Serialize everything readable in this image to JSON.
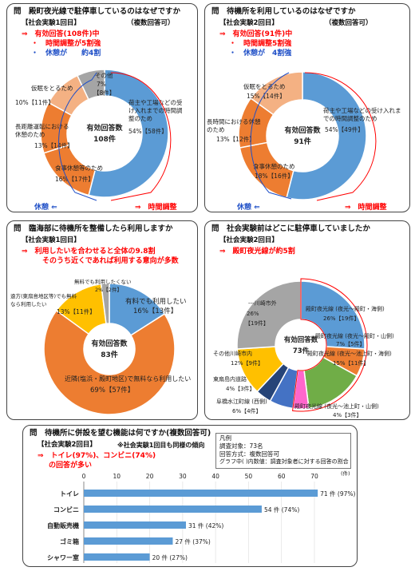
{
  "panel1": {
    "question": "問　殿町夜光線で駐停車しているのはなぜですか",
    "sub": "【社会実験1回目】",
    "sub_note": "（複数回答可）",
    "note1": "⇒　有効回答(108件)中",
    "note2": "・　時間調整が5割強",
    "note3": "・　休憩が　　約4割",
    "center_label": "有効回答数",
    "center_value": "108件",
    "label_left": "休憩 ⇐",
    "label_right": "⇒　時間調整"
  },
  "panel2": {
    "question": "問　待機所を利用しているのはなぜですか",
    "sub": "【社会実験2回目】",
    "sub_note": "（複数回答可）",
    "note1": "⇒　有効回答(91件)中",
    "note2": "・　時間調整5割強",
    "note3": "・　休憩が　4割強",
    "center_label": "有効回答数",
    "center_value": "91件",
    "label_left": "休憩 ⇐",
    "label_right": "⇒　時間調整"
  },
  "panel3": {
    "question": "問　臨海部に待機所を整備したら利用しますか",
    "sub": "【社会実験1回目】",
    "note1": "⇒　利用したいを合わせると全体の9.8割",
    "note2": "そのうち近くであれば利用する意向が多数",
    "center_label": "有効回答数",
    "center_value": "83件"
  },
  "panel4": {
    "question": "問　社会実験前はどこに駐停車していましたか",
    "sub": "【社会実験2回目】",
    "note1": "⇒　殿町夜光線が約5割",
    "center_label": "有効回答数",
    "center_value": "73件"
  },
  "panel5": {
    "question": "問　待機所に併設を望む機能は何ですか(複数回答可)",
    "sub": "【社会実験2回目】",
    "sub_note": "※社会実験1回目も同様の傾向",
    "note1": "⇒　トイレ(97%)、コンビニ(74%)",
    "note2": "の回答が多い",
    "legend_title": "凡例",
    "legend_1": "調査対象：73名",
    "legend_2": "回答方式：複数回答可",
    "legend_3": "グラフ中(   )内数値：調査対象者に対する回答の割合",
    "axis_unit": "(件)"
  },
  "colors": {
    "blue": "#5b9bd5",
    "orange": "#ed7d31",
    "light_orange": "#f4b183",
    "gray": "#a5a5a5",
    "yellow": "#ffc000",
    "green": "#70ad47",
    "pink": "#ff66cc",
    "bar": "#5b9bd5"
  },
  "chart_data": [
    {
      "type": "pie",
      "title": "問　殿町夜光線で駐停車しているのはなぜですか",
      "total": 108,
      "slices": [
        {
          "label": "荷主や工場などの受け入れまでの時間調整のため",
          "percent": 54,
          "count": 58,
          "text": "54%【58件】",
          "color": "#5b9bd5"
        },
        {
          "label": "食事休憩等のため",
          "percent": 16,
          "count": 17,
          "text": "16%【17件】",
          "color": "#ed7d31"
        },
        {
          "label": "長距離運転における休憩のため",
          "percent": 13,
          "count": 14,
          "text": "13%【14件】",
          "color": "#ed7d31"
        },
        {
          "label": "仮眠をとるため",
          "percent": 10,
          "count": 11,
          "text": "10%【11件】",
          "color": "#f4b183"
        },
        {
          "label": "その他",
          "percent": 7,
          "count": 8,
          "text": "7%【8件】",
          "color": "#a5a5a5"
        }
      ]
    },
    {
      "type": "pie",
      "title": "問　待機所を利用しているのはなぜですか",
      "total": 91,
      "slices": [
        {
          "label": "荷主や工場などの受け入れまでの時間調整のため",
          "percent": 54,
          "count": 49,
          "text": "54%【49件】",
          "color": "#5b9bd5"
        },
        {
          "label": "食事休憩のため",
          "percent": 18,
          "count": 16,
          "text": "18%【16件】",
          "color": "#ed7d31"
        },
        {
          "label": "長時間における休憩のため",
          "percent": 13,
          "count": 12,
          "text": "13%【12件】",
          "color": "#ed7d31"
        },
        {
          "label": "仮眠をとるため",
          "percent": 15,
          "count": 14,
          "text": "15%【14件】",
          "color": "#f4b183"
        }
      ]
    },
    {
      "type": "pie",
      "title": "問　臨海部に待機所を整備したら利用しますか",
      "total": 83,
      "slices": [
        {
          "label": "有料でも利用したい",
          "percent": 16,
          "count": 13,
          "text": "16%【13件】",
          "color": "#5b9bd5"
        },
        {
          "label": "近隣(塩浜・殿町地区)で無料なら利用したい",
          "percent": 69,
          "count": 57,
          "text": "69%【57件】",
          "color": "#ed7d31"
        },
        {
          "label": "遠方(東扇島地区等)でも無料なら利用したい",
          "percent": 13,
          "count": 11,
          "text": "13%【11件】",
          "color": "#ffc000"
        },
        {
          "label": "無料でも利用したくない",
          "percent": 2,
          "count": 2,
          "text": "2%【2件】",
          "color": "#a5a5a5"
        }
      ]
    },
    {
      "type": "pie",
      "title": "問　社会実験前はどこに駐停車していましたか",
      "total": 73,
      "slices": [
        {
          "label": "殿町夜光線 (夜光～殿町・海側)",
          "percent": 26,
          "count": 19,
          "text": "26%【19件】",
          "color": "#5b9bd5"
        },
        {
          "label": "殿町夜光線 (夜光～殿町・山側)",
          "percent": 7,
          "count": 5,
          "text": "7%【5件】",
          "color": "#ed7d31"
        },
        {
          "label": "殿町夜光線 (夜光～池上町・海側)",
          "percent": 15,
          "count": 11,
          "text": "15%【11件】",
          "color": "#70ad47"
        },
        {
          "label": "殿町夜光線 (夜光～池上町・山側)",
          "percent": 4,
          "count": 3,
          "text": "4%【3件】",
          "color": "#ff66cc"
        },
        {
          "label": "阜橋水江町線 (西側)",
          "percent": 6,
          "count": 4,
          "text": "6%【4件】",
          "color": "#4472c4"
        },
        {
          "label": "東扇島内道路",
          "percent": 4,
          "count": 3,
          "text": "4%【3件】",
          "color": "#264478"
        },
        {
          "label": "その他川崎市内",
          "percent": 12,
          "count": 9,
          "text": "12%【9件】",
          "color": "#ffc000"
        },
        {
          "label": "川崎市外",
          "percent": 26,
          "count": 19,
          "text": "26%【19件】",
          "color": "#a5a5a5"
        }
      ]
    },
    {
      "type": "bar",
      "title": "問　待機所に併設を望む機能は何ですか(複数回答可)",
      "categories": [
        "トイレ",
        "コンビニ",
        "自動販売機",
        "ゴミ箱",
        "シャワー室"
      ],
      "values": [
        71,
        54,
        31,
        27,
        20
      ],
      "value_labels": [
        "71 件 (97%)",
        "54 件 (74%)",
        "31 件 (42%)",
        "27 件 (37%)",
        "20 件 (27%)"
      ],
      "xlim": [
        0,
        70
      ],
      "xticks": [
        0,
        10,
        20,
        30,
        40,
        50,
        60,
        70
      ],
      "xlabel": "(件)"
    }
  ]
}
